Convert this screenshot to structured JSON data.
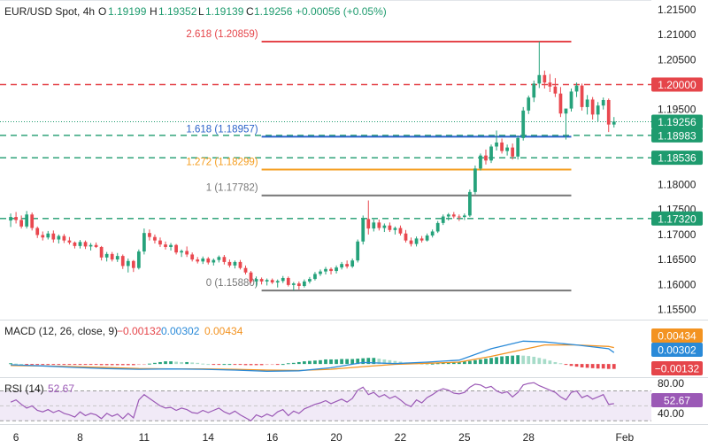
{
  "header": {
    "symbol": "EUR/USD Spot, 4h",
    "o_label": "O",
    "o": "1.19199",
    "h_label": "H",
    "h": "1.19352",
    "l_label": "L",
    "l": "1.19139",
    "c_label": "C",
    "c": "1.19256",
    "change": "+0.00056 (+0.05%)"
  },
  "chart_data": [
    {
      "type": "candlestick",
      "price_axis": {
        "ticks": [
          "1.21500",
          "1.21000",
          "1.20500",
          "1.20000",
          "1.19500",
          "1.19000",
          "1.18500",
          "1.18000",
          "1.17500",
          "1.17000",
          "1.16500",
          "1.16000",
          "1.15500"
        ],
        "tick_values": [
          1.215,
          1.21,
          1.205,
          1.2,
          1.195,
          1.19,
          1.185,
          1.18,
          1.175,
          1.17,
          1.165,
          1.16,
          1.155
        ],
        "ylim": [
          1.1535,
          1.2155
        ]
      },
      "time_axis": {
        "labels": [
          "6",
          "8",
          "11",
          "14",
          "16",
          "20",
          "22",
          "25",
          "28",
          "Feb"
        ],
        "label_index": [
          1,
          13,
          25,
          37,
          49,
          61,
          73,
          85,
          97,
          115
        ],
        "xlim": [
          -2,
          120
        ]
      },
      "candles": [
        [
          1.1728,
          1.1742,
          1.1715,
          1.1735
        ],
        [
          1.1735,
          1.1745,
          1.1722,
          1.1729
        ],
        [
          1.1729,
          1.1738,
          1.1712,
          1.1716
        ],
        [
          1.1716,
          1.1747,
          1.1712,
          1.174
        ],
        [
          1.174,
          1.1744,
          1.1708,
          1.1713
        ],
        [
          1.1713,
          1.1716,
          1.1693,
          1.1699
        ],
        [
          1.1699,
          1.1706,
          1.1688,
          1.1694
        ],
        [
          1.1694,
          1.1707,
          1.169,
          1.1702
        ],
        [
          1.1702,
          1.1708,
          1.1684,
          1.169
        ],
        [
          1.169,
          1.17,
          1.1682,
          1.1697
        ],
        [
          1.1697,
          1.1701,
          1.1683,
          1.1688
        ],
        [
          1.1688,
          1.1695,
          1.168,
          1.1684
        ],
        [
          1.1684,
          1.1686,
          1.1672,
          1.1677
        ],
        [
          1.1677,
          1.1689,
          1.1672,
          1.1685
        ],
        [
          1.1685,
          1.1688,
          1.1671,
          1.1676
        ],
        [
          1.1676,
          1.1683,
          1.1668,
          1.1679
        ],
        [
          1.1679,
          1.1684,
          1.1673,
          1.1675
        ],
        [
          1.1675,
          1.1677,
          1.1648,
          1.1654
        ],
        [
          1.1654,
          1.1665,
          1.1646,
          1.1661
        ],
        [
          1.1661,
          1.1665,
          1.1646,
          1.165
        ],
        [
          1.165,
          1.1663,
          1.1645,
          1.1657
        ],
        [
          1.1657,
          1.166,
          1.1631,
          1.1637
        ],
        [
          1.1637,
          1.1652,
          1.1624,
          1.1647
        ],
        [
          1.1647,
          1.1649,
          1.1625,
          1.1633
        ],
        [
          1.1633,
          1.167,
          1.163,
          1.1666
        ],
        [
          1.1666,
          1.1712,
          1.166,
          1.1703
        ],
        [
          1.1703,
          1.171,
          1.1688,
          1.1695
        ],
        [
          1.1695,
          1.17,
          1.1682,
          1.1688
        ],
        [
          1.1688,
          1.1694,
          1.1675,
          1.168
        ],
        [
          1.168,
          1.1686,
          1.167,
          1.1675
        ],
        [
          1.1675,
          1.1683,
          1.1668,
          1.1679
        ],
        [
          1.1679,
          1.1681,
          1.166,
          1.1664
        ],
        [
          1.1664,
          1.167,
          1.1655,
          1.1667
        ],
        [
          1.1667,
          1.1676,
          1.1655,
          1.166
        ],
        [
          1.166,
          1.1664,
          1.1646,
          1.165
        ],
        [
          1.165,
          1.1655,
          1.1642,
          1.1646
        ],
        [
          1.1646,
          1.1656,
          1.1641,
          1.1652
        ],
        [
          1.1652,
          1.1655,
          1.164,
          1.1644
        ],
        [
          1.1644,
          1.1652,
          1.1638,
          1.1649
        ],
        [
          1.1649,
          1.1658,
          1.1644,
          1.1655
        ],
        [
          1.1655,
          1.1659,
          1.164,
          1.1645
        ],
        [
          1.1645,
          1.165,
          1.1634,
          1.1638
        ],
        [
          1.1638,
          1.1648,
          1.1632,
          1.1645
        ],
        [
          1.1645,
          1.1649,
          1.163,
          1.1633
        ],
        [
          1.1633,
          1.1638,
          1.162,
          1.1624
        ],
        [
          1.1624,
          1.1627,
          1.1602,
          1.1606
        ],
        [
          1.1606,
          1.1616,
          1.1596,
          1.1611
        ],
        [
          1.1611,
          1.1614,
          1.16,
          1.1606
        ],
        [
          1.1606,
          1.1612,
          1.1598,
          1.1609
        ],
        [
          1.1609,
          1.1612,
          1.1601,
          1.1604
        ],
        [
          1.1604,
          1.161,
          1.1594,
          1.1607
        ],
        [
          1.1607,
          1.1617,
          1.1603,
          1.1613
        ],
        [
          1.1613,
          1.1616,
          1.1596,
          1.1599
        ],
        [
          1.1599,
          1.1605,
          1.1588,
          1.1602
        ],
        [
          1.1602,
          1.1606,
          1.159,
          1.1597
        ],
        [
          1.1597,
          1.161,
          1.1594,
          1.1606
        ],
        [
          1.1606,
          1.1615,
          1.1602,
          1.1611
        ],
        [
          1.1611,
          1.1625,
          1.1608,
          1.1621
        ],
        [
          1.1621,
          1.163,
          1.1617,
          1.1626
        ],
        [
          1.1626,
          1.1635,
          1.162,
          1.1631
        ],
        [
          1.1631,
          1.1634,
          1.162,
          1.1627
        ],
        [
          1.1627,
          1.1638,
          1.1622,
          1.1634
        ],
        [
          1.1634,
          1.1645,
          1.163,
          1.1641
        ],
        [
          1.1641,
          1.1648,
          1.1632,
          1.1636
        ],
        [
          1.1636,
          1.1652,
          1.1633,
          1.1648
        ],
        [
          1.1648,
          1.169,
          1.1644,
          1.1686
        ],
        [
          1.1686,
          1.1738,
          1.168,
          1.1731
        ],
        [
          1.1731,
          1.1768,
          1.17,
          1.1712
        ],
        [
          1.1712,
          1.173,
          1.1706,
          1.1724
        ],
        [
          1.1724,
          1.173,
          1.1708,
          1.1713
        ],
        [
          1.1713,
          1.1722,
          1.1705,
          1.1718
        ],
        [
          1.1718,
          1.1724,
          1.1705,
          1.1709
        ],
        [
          1.1709,
          1.1716,
          1.17,
          1.1713
        ],
        [
          1.1713,
          1.1718,
          1.1698,
          1.1702
        ],
        [
          1.1702,
          1.1709,
          1.1684,
          1.1688
        ],
        [
          1.1688,
          1.1694,
          1.1676,
          1.1681
        ],
        [
          1.1681,
          1.1696,
          1.1676,
          1.1692
        ],
        [
          1.1692,
          1.1697,
          1.1684,
          1.1688
        ],
        [
          1.1688,
          1.1702,
          1.1686,
          1.1698
        ],
        [
          1.1698,
          1.171,
          1.1694,
          1.1706
        ],
        [
          1.1706,
          1.1727,
          1.1703,
          1.1723
        ],
        [
          1.1723,
          1.174,
          1.1719,
          1.1736
        ],
        [
          1.1736,
          1.1743,
          1.1728,
          1.174
        ],
        [
          1.174,
          1.1745,
          1.1732,
          1.1736
        ],
        [
          1.1736,
          1.174,
          1.1727,
          1.1735
        ],
        [
          1.1735,
          1.1742,
          1.1729,
          1.1738
        ],
        [
          1.1738,
          1.179,
          1.1735,
          1.1785
        ],
        [
          1.1785,
          1.1838,
          1.178,
          1.1832
        ],
        [
          1.1832,
          1.1862,
          1.1828,
          1.1858
        ],
        [
          1.1858,
          1.187,
          1.184,
          1.1848
        ],
        [
          1.1848,
          1.188,
          1.1843,
          1.1876
        ],
        [
          1.1876,
          1.1908,
          1.1868,
          1.1884
        ],
        [
          1.1884,
          1.1892,
          1.1862,
          1.1867
        ],
        [
          1.1867,
          1.188,
          1.1858,
          1.1874
        ],
        [
          1.1874,
          1.1882,
          1.185,
          1.1856
        ],
        [
          1.1856,
          1.1898,
          1.185,
          1.1893
        ],
        [
          1.1893,
          1.1955,
          1.1888,
          1.1948
        ],
        [
          1.1948,
          1.1978,
          1.1941,
          1.1974
        ],
        [
          1.1974,
          1.2008,
          1.1965,
          1.2002
        ],
        [
          1.2002,
          1.2086,
          1.1993,
          1.2019
        ],
        [
          1.2019,
          1.2028,
          1.1992,
          1.2004
        ],
        [
          1.2004,
          1.2021,
          1.1985,
          1.1996
        ],
        [
          1.1996,
          1.2013,
          1.1975,
          1.1982
        ],
        [
          1.1982,
          1.1995,
          1.1935,
          1.1942
        ],
        [
          1.1942,
          1.195,
          1.189,
          1.1952
        ],
        [
          1.1952,
          1.1992,
          1.1946,
          1.1986
        ],
        [
          1.1986,
          1.2004,
          1.1975,
          1.1998
        ],
        [
          1.1998,
          1.2002,
          1.1948,
          1.1955
        ],
        [
          1.1955,
          1.1979,
          1.194,
          1.197
        ],
        [
          1.197,
          1.1975,
          1.193,
          1.194
        ],
        [
          1.194,
          1.1965,
          1.1926,
          1.1958
        ],
        [
          1.1958,
          1.1974,
          1.195,
          1.1969
        ],
        [
          1.1969,
          1.1972,
          1.1905,
          1.192
        ],
        [
          1.192,
          1.1935,
          1.1914,
          1.1926
        ]
      ],
      "fib_levels": [
        {
          "label": "2.618 (1.20859)",
          "value": 1.20859,
          "color": "#e5454a"
        },
        {
          "label": "1.618 (1.18957)",
          "value": 1.18957,
          "color": "#2c63c9"
        },
        {
          "label": "1.272 (1.18299)",
          "value": 1.18299,
          "color": "#f59e20"
        },
        {
          "label": "1 (1.17782)",
          "value": 1.17782,
          "color": "#777777"
        },
        {
          "label": "0 (1.15880)",
          "value": 1.1588,
          "color": "#777777"
        }
      ],
      "horizontal_lines": [
        {
          "label": "1.20000",
          "value": 1.2,
          "color": "#e5454a",
          "style": "dashed"
        },
        {
          "label": "1.18983",
          "value": 1.18983,
          "color": "#1e9b6e",
          "style": "dashed"
        },
        {
          "label": "1.18536",
          "value": 1.18536,
          "color": "#1e9b6e",
          "style": "dashed"
        },
        {
          "label": "1.17320",
          "value": 1.1732,
          "color": "#1e9b6e",
          "style": "dashed"
        }
      ],
      "last_price": {
        "label": "1.19256",
        "value": 1.19256,
        "color": "#1e9b6e"
      },
      "colors": {
        "up": "#26a27b",
        "down": "#e9484f"
      }
    },
    {
      "type": "bar",
      "title": "MACD (12, 26, close, 9)",
      "values_text": [
        "−0.00132",
        "0.00302",
        "0.00434"
      ],
      "value_colors": [
        "#e5454a",
        "#2a8ad8",
        "#f39321"
      ],
      "tags": [
        {
          "label": "0.00434",
          "color": "#f39321"
        },
        {
          "label": "0.00302",
          "color": "#2a8ad8"
        },
        {
          "label": "−0.00132",
          "color": "#e5454a"
        }
      ],
      "macd_line": [
        [
          0,
          -0.0002
        ],
        [
          6,
          -0.0005
        ],
        [
          12,
          -0.0009
        ],
        [
          18,
          -0.0012
        ],
        [
          24,
          -0.0014
        ],
        [
          30,
          -0.0013
        ],
        [
          36,
          -0.0014
        ],
        [
          42,
          -0.0016
        ],
        [
          48,
          -0.0019
        ],
        [
          54,
          -0.0018
        ],
        [
          60,
          -0.001
        ],
        [
          66,
          0.0004
        ],
        [
          72,
          0.0001
        ],
        [
          78,
          0.0005
        ],
        [
          84,
          0.001
        ],
        [
          90,
          0.004
        ],
        [
          96,
          0.006
        ],
        [
          100,
          0.0058
        ],
        [
          106,
          0.005
        ],
        [
          112,
          0.004
        ],
        [
          113,
          0.003
        ]
      ],
      "signal_line": [
        [
          0,
          -0.0004
        ],
        [
          6,
          -0.0005
        ],
        [
          12,
          -0.0007
        ],
        [
          18,
          -0.0009
        ],
        [
          24,
          -0.0012
        ],
        [
          30,
          -0.0013
        ],
        [
          36,
          -0.0013
        ],
        [
          42,
          -0.0014
        ],
        [
          48,
          -0.0016
        ],
        [
          54,
          -0.0017
        ],
        [
          60,
          -0.0014
        ],
        [
          66,
          -0.0007
        ],
        [
          72,
          -0.0001
        ],
        [
          78,
          0.0002
        ],
        [
          84,
          0.0005
        ],
        [
          90,
          0.002
        ],
        [
          96,
          0.0038
        ],
        [
          100,
          0.005
        ],
        [
          106,
          0.005
        ],
        [
          112,
          0.0046
        ],
        [
          113,
          0.0043
        ]
      ],
      "histogram": [
        0.0002,
        0.0001,
        0.0,
        -0.0001,
        -0.0001,
        -0.0001,
        -0.0002,
        -0.0002,
        -0.0002,
        -0.0002,
        -0.0002,
        -0.0002,
        -0.0002,
        -0.0002,
        -0.0002,
        -0.0002,
        -0.0002,
        -0.0003,
        -0.0003,
        -0.0003,
        -0.0003,
        -0.0003,
        -0.0003,
        -0.0003,
        -0.0002,
        -0.0001,
        0.0001,
        0.0003,
        0.0005,
        0.0007,
        0.0007,
        0.0006,
        0.0005,
        0.0005,
        0.0004,
        0.0003,
        0.0001,
        0.0,
        -0.0001,
        -0.0001,
        0.0,
        0.0,
        -0.0001,
        -0.0002,
        -0.0003,
        -0.0003,
        -0.0003,
        -0.0003,
        -0.0002,
        -0.0001,
        -0.0001,
        0.0,
        0.0002,
        0.0003,
        0.0005,
        0.0007,
        0.0008,
        0.0009,
        0.001,
        0.0012,
        0.0012,
        0.0012,
        0.0013,
        0.0013,
        0.0013,
        0.0014,
        0.0015,
        0.0016,
        0.0016,
        0.0014,
        0.0012,
        0.001,
        0.0008,
        0.0006,
        0.0004,
        0.0003,
        0.0002,
        0.0001,
        0.0,
        0.0001,
        0.0002,
        0.0003,
        0.0004,
        0.0005,
        0.0006,
        0.0007,
        0.0008,
        0.001,
        0.0012,
        0.0014,
        0.0016,
        0.0018,
        0.002,
        0.0021,
        0.0022,
        0.0023,
        0.0022,
        0.0021,
        0.0019,
        0.0016,
        0.0013,
        0.0009,
        0.0005,
        0.0002,
        -0.0002,
        -0.0005,
        -0.0007,
        -0.0009,
        -0.001,
        -0.0011,
        -0.0012,
        -0.0012,
        -0.0013,
        -0.0013
      ],
      "ylim": [
        -0.003,
        0.0105
      ]
    },
    {
      "type": "line",
      "title": "RSI (14)",
      "value_text": "52.67",
      "value_color": "#9b59b6",
      "tag": {
        "label": "52.67",
        "color": "#9b59b6"
      },
      "ticks": [
        "80.00",
        "40.00"
      ],
      "tick_values": [
        80,
        40
      ],
      "band": [
        30,
        70
      ],
      "ylim": [
        28,
        86
      ],
      "series": [
        55,
        58,
        52,
        47,
        50,
        44,
        42,
        45,
        41,
        44,
        40,
        38,
        35,
        42,
        37,
        40,
        38,
        33,
        40,
        36,
        39,
        33,
        40,
        34,
        58,
        65,
        60,
        55,
        50,
        47,
        48,
        44,
        47,
        45,
        41,
        40,
        44,
        41,
        44,
        47,
        42,
        39,
        43,
        38,
        34,
        30,
        38,
        35,
        39,
        36,
        42,
        45,
        37,
        43,
        40,
        46,
        49,
        52,
        54,
        57,
        53,
        56,
        59,
        55,
        60,
        71,
        75,
        65,
        68,
        62,
        65,
        60,
        63,
        58,
        52,
        49,
        58,
        54,
        61,
        65,
        70,
        73,
        71,
        67,
        66,
        68,
        75,
        79,
        78,
        74,
        76,
        70,
        67,
        69,
        62,
        68,
        78,
        80,
        81,
        77,
        74,
        71,
        68,
        62,
        58,
        68,
        70,
        61,
        64,
        59,
        62,
        65,
        52,
        53
      ]
    }
  ]
}
